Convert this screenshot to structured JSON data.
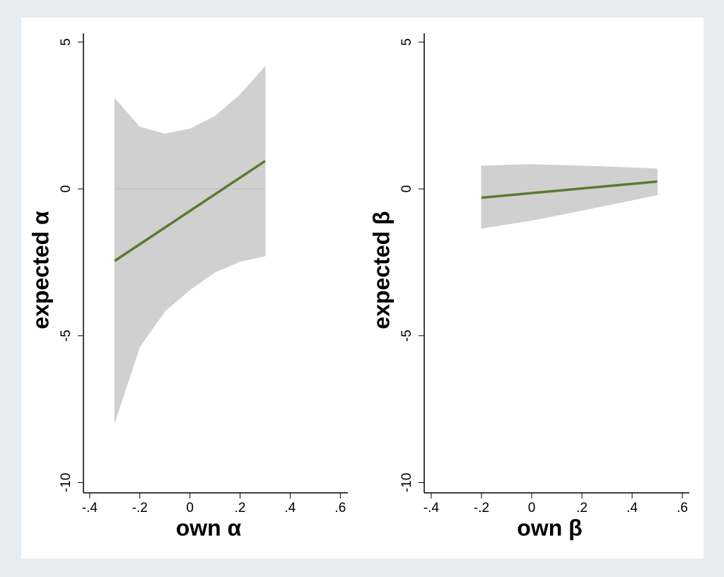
{
  "chart_data": [
    {
      "type": "line",
      "ylabel": "expected α",
      "xlabel": "own α",
      "xlim": [
        -0.425,
        0.63
      ],
      "ylim": [
        -10.35,
        5.3
      ],
      "xticks": [
        {
          "value": -0.4,
          "label": "-.4"
        },
        {
          "value": -0.2,
          "label": "-.2"
        },
        0,
        {
          "value": 0.2,
          "label": ".2"
        },
        {
          "value": 0.4,
          "label": ".4"
        },
        {
          "value": 0.6,
          "label": ".6"
        }
      ],
      "yticks": [
        5,
        0,
        -5,
        -10
      ],
      "reference_line": 0,
      "band": {
        "color": "#d0d0d0",
        "x": [
          -0.3,
          -0.2,
          -0.1,
          0,
          0.1,
          0.2,
          0.3
        ],
        "upper": [
          3.07,
          2.1,
          1.87,
          2.04,
          2.47,
          3.2,
          4.16
        ],
        "lower": [
          -7.94,
          -5.36,
          -4.16,
          -3.43,
          -2.83,
          -2.47,
          -2.28
        ]
      },
      "line": {
        "color": "#5a7a32",
        "x": [
          -0.3,
          0.3
        ],
        "values": [
          -2.45,
          0.95
        ]
      }
    },
    {
      "type": "line",
      "ylabel": "expected β",
      "xlabel": "own β",
      "xlim": [
        -0.428,
        0.628
      ],
      "ylim": [
        -10.35,
        5.3
      ],
      "xticks": [
        {
          "value": -0.4,
          "label": "-.4"
        },
        {
          "value": -0.2,
          "label": "-.2"
        },
        0,
        {
          "value": 0.2,
          "label": ".2"
        },
        {
          "value": 0.4,
          "label": ".4"
        },
        {
          "value": 0.6,
          "label": ".6"
        }
      ],
      "yticks": [
        5,
        0,
        -5,
        -10
      ],
      "band": {
        "color": "#d0d0d0",
        "x": [
          -0.2,
          0,
          0.2,
          0.4,
          0.5
        ],
        "upper": [
          0.78,
          0.83,
          0.78,
          0.72,
          0.68
        ],
        "lower": [
          -1.34,
          -1.07,
          -0.73,
          -0.38,
          -0.2
        ]
      },
      "line": {
        "color": "#5a7a32",
        "x": [
          -0.2,
          0.5
        ],
        "values": [
          -0.3,
          0.25
        ]
      }
    }
  ]
}
